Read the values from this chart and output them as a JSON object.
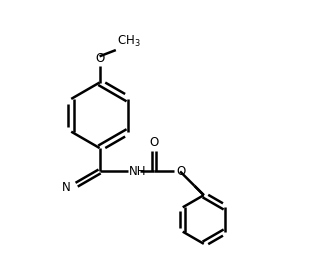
{
  "bg_color": "#ffffff",
  "line_color": "#000000",
  "line_width": 1.8,
  "font_size": 8.5,
  "figsize": [
    3.24,
    2.68
  ],
  "dpi": 100,
  "xlim": [
    0,
    10
  ],
  "ylim": [
    0,
    8.5
  ]
}
